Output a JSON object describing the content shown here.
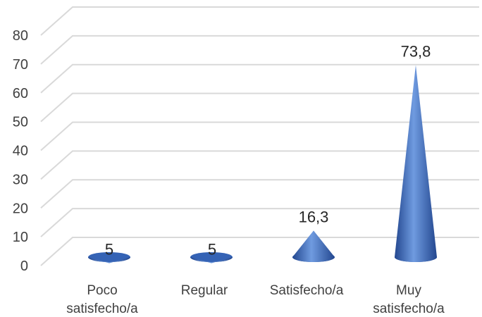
{
  "chart_data": {
    "type": "bar",
    "style": "3d-cone",
    "categories": [
      "Poco satisfecho/a",
      "Regular",
      "Satisfecho/a",
      "Muy satisfecho/a"
    ],
    "category_label_lines": [
      [
        "Poco",
        "satisfecho/a"
      ],
      [
        "Regular"
      ],
      [
        "Satisfecho/a"
      ],
      [
        "Muy",
        "satisfecho/a"
      ]
    ],
    "values": [
      5,
      5,
      16.3,
      73.8
    ],
    "data_labels": [
      "5",
      "5",
      "16,3",
      "73,8"
    ],
    "ylim": [
      0,
      80
    ],
    "yticks": [
      0,
      10,
      20,
      30,
      40,
      50,
      60,
      70,
      80
    ],
    "grid": true,
    "legend": "none",
    "title": "",
    "xlabel": "",
    "ylabel": "",
    "colors": {
      "cone_light": "#6f9be0",
      "cone_mid": "#3f6ec2",
      "cone_dark": "#23478f",
      "base_fill": "#3563b5",
      "gridline": "#d9d9d9",
      "axis_text": "#404040",
      "label_text": "#262626"
    }
  }
}
